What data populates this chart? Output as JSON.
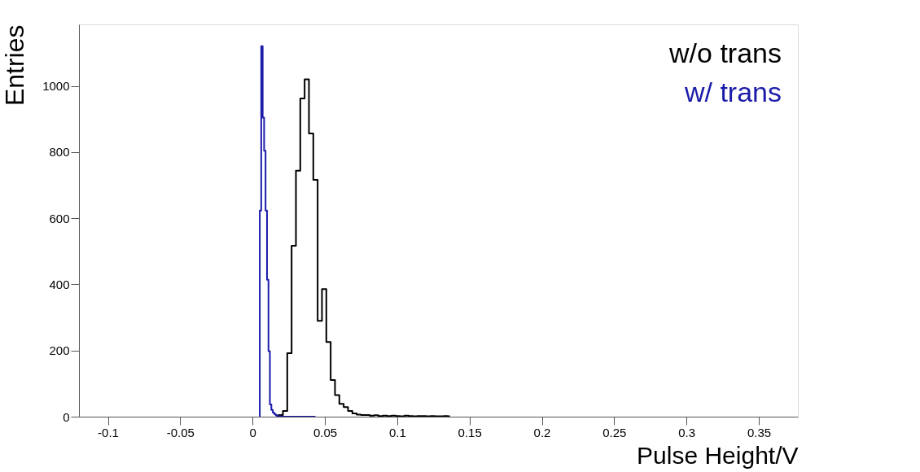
{
  "chart_data": {
    "type": "step",
    "xlabel": "Pulse Height/V",
    "ylabel": "Entries",
    "xlim": [
      -0.12,
      0.377
    ],
    "xticks": [
      -0.1,
      -0.05,
      0,
      0.05,
      0.1,
      0.15,
      0.2,
      0.25,
      0.3,
      0.35
    ],
    "ylim": [
      0,
      1186
    ],
    "yticks": [
      0,
      200,
      400,
      600,
      800,
      1000
    ],
    "grid": false,
    "series": [
      {
        "name": "w/o trans",
        "color": "#000000",
        "x": [
          0.0165,
          0.0195,
          0.0225,
          0.0255,
          0.0285,
          0.0315,
          0.0345,
          0.0375,
          0.0405,
          0.0435,
          0.0465,
          0.0495,
          0.0525,
          0.0555,
          0.0585,
          0.0615,
          0.0645,
          0.0675,
          0.0705,
          0.0735,
          0.0765,
          0.0795,
          0.0825,
          0.0855,
          0.0885,
          0.0915,
          0.0945,
          0.0975,
          0.1005,
          0.1035,
          0.1065,
          0.1095,
          0.1125,
          0.1155,
          0.1185,
          0.1215,
          0.1245,
          0.1275,
          0.1305,
          0.1335,
          0.1365
        ],
        "values": [
          2,
          5,
          17,
          192,
          517,
          744,
          962,
          1020,
          856,
          716,
          290,
          386,
          226,
          111,
          65,
          39,
          29,
          17,
          10,
          6,
          5,
          5,
          3,
          4,
          2,
          3,
          2,
          3,
          2,
          1,
          3,
          2,
          1,
          2,
          2,
          1,
          2,
          1,
          1,
          2,
          1
        ]
      },
      {
        "name": "w/ trans",
        "color": "#1c1caa",
        "x": [
          0.0045,
          0.0055,
          0.0065,
          0.0075,
          0.0085,
          0.0095,
          0.0105,
          0.0115,
          0.0125,
          0.0135,
          0.0145,
          0.0155,
          0.0165,
          0.0175,
          0.0185,
          0.0195,
          0.0205,
          0.0215,
          0.0225,
          0.0235,
          0.0245,
          0.0255,
          0.0265,
          0.0275,
          0.0285,
          0.0295,
          0.0305,
          0.0315,
          0.0325,
          0.0335,
          0.0345,
          0.0355,
          0.0365,
          0.0375,
          0.0385,
          0.0395,
          0.0405,
          0.0415,
          0.0425,
          0.0435
        ],
        "values": [
          0,
          623,
          1120,
          904,
          804,
          623,
          414,
          198,
          37,
          20,
          12,
          8,
          4,
          2,
          1,
          1,
          0,
          0,
          0,
          0,
          0,
          0,
          0,
          0,
          0,
          0,
          0,
          0,
          0,
          0,
          0,
          0,
          0,
          0,
          0,
          0,
          0,
          0,
          0,
          0
        ]
      }
    ]
  }
}
